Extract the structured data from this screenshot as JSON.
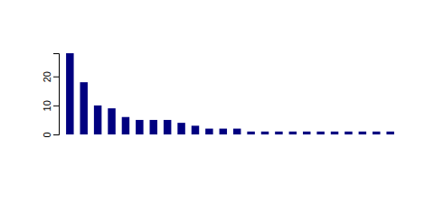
{
  "chart_data": {
    "type": "bar",
    "categories": [
      null,
      null,
      null,
      null,
      null,
      null,
      null,
      null,
      null,
      null,
      null,
      null,
      null,
      null,
      null,
      null,
      null,
      null,
      null,
      null,
      null,
      null,
      null,
      null
    ],
    "values": [
      28,
      18,
      10,
      9,
      6,
      5,
      5,
      5,
      4,
      3,
      2,
      2,
      2,
      1,
      1,
      1,
      1,
      1,
      1,
      1,
      1,
      1,
      1,
      1
    ],
    "color": "#000080",
    "ylim": [
      0,
      28
    ],
    "yticks": [
      0,
      10,
      20
    ],
    "grid": false,
    "tick_labels": "y"
  }
}
